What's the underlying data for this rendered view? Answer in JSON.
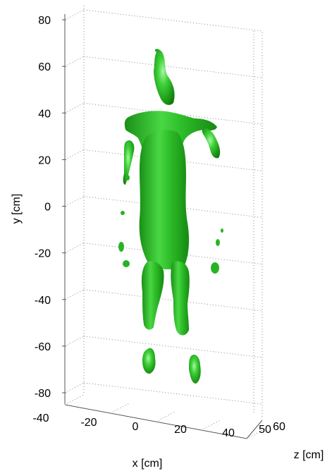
{
  "chart_data": {
    "type": "scatter",
    "subtype": "3d-isosurface",
    "title": "",
    "xlabel": "x [cm]",
    "ylabel": "y [cm]",
    "zlabel": "z [cm]",
    "x_ticks": [
      "-40",
      "-20",
      "0",
      "20",
      "40"
    ],
    "y_ticks": [
      "80",
      "60",
      "40",
      "20",
      "0",
      "-20",
      "-40",
      "-60",
      "-80"
    ],
    "z_ticks": [
      "50",
      "60"
    ],
    "y_range": [
      -80,
      80
    ],
    "x_range": [
      -40,
      40
    ],
    "z_range": [
      50,
      60
    ],
    "grid": true,
    "surface_color": "#2fbf2a",
    "surface_highlight": "#9cf59a",
    "surface_shadow": "#13800f",
    "object": "human body isosurface"
  }
}
